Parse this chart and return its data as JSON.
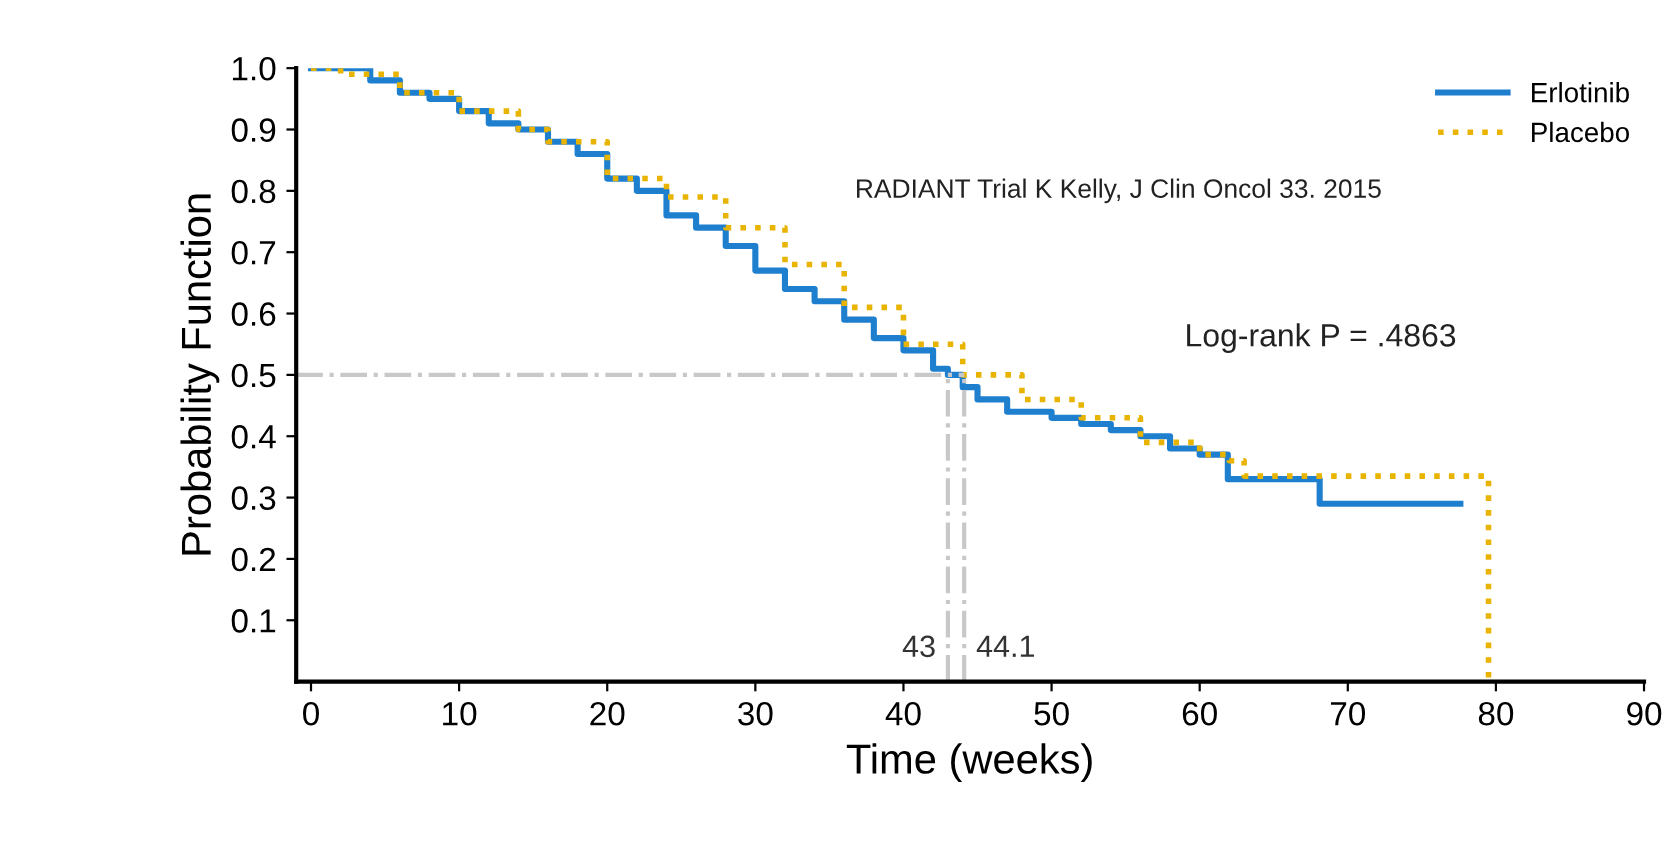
{
  "chart_data": {
    "type": "step",
    "xlabel": "Time (weeks)",
    "ylabel": "Probability Function",
    "xlim": [
      -1,
      90
    ],
    "ylim": [
      0,
      1.0
    ],
    "xticks": [
      0,
      10,
      20,
      30,
      40,
      50,
      60,
      70,
      80,
      90
    ],
    "yticks": [
      {
        "value": 0.1,
        "label": "0.1"
      },
      {
        "value": 0.2,
        "label": "0.2"
      },
      {
        "value": 0.3,
        "label": "0.3"
      },
      {
        "value": 0.4,
        "label": "0.4"
      },
      {
        "value": 0.5,
        "label": "0.5"
      },
      {
        "value": 0.6,
        "label": "0.6"
      },
      {
        "value": 0.7,
        "label": "0.7"
      },
      {
        "value": 0.8,
        "label": "0.8"
      },
      {
        "value": 0.9,
        "label": "0.9"
      },
      {
        "value": 1.0,
        "label": "1.0"
      }
    ],
    "grid": false,
    "legend": "top right",
    "series": [
      {
        "name": "Erlotinib",
        "color": "#1f7fcf",
        "line_style": "solid",
        "x": [
          0,
          2,
          4,
          6,
          8,
          10,
          12,
          14,
          16,
          18,
          20,
          22,
          24,
          26,
          28,
          30,
          32,
          34,
          36,
          38,
          40,
          42,
          43,
          44,
          45,
          47,
          50,
          52,
          54,
          56,
          58,
          60,
          61.9,
          68.1,
          77.6
        ],
        "values": [
          1.0,
          1.0,
          0.98,
          0.96,
          0.95,
          0.93,
          0.91,
          0.9,
          0.88,
          0.86,
          0.82,
          0.8,
          0.76,
          0.74,
          0.71,
          0.67,
          0.64,
          0.62,
          0.59,
          0.56,
          0.54,
          0.51,
          0.5,
          0.48,
          0.46,
          0.44,
          0.43,
          0.42,
          0.41,
          0.4,
          0.38,
          0.37,
          0.33,
          0.29,
          0.29
        ]
      },
      {
        "name": "Placebo",
        "color": "#e8b400",
        "line_style": "dotted",
        "x": [
          0,
          2,
          6,
          10,
          14,
          16,
          20,
          24,
          28,
          32,
          36,
          40,
          44,
          48,
          52,
          56,
          60,
          62,
          63,
          79.5
        ],
        "values": [
          1.0,
          0.99,
          0.96,
          0.93,
          0.9,
          0.88,
          0.82,
          0.79,
          0.74,
          0.68,
          0.61,
          0.55,
          0.5,
          0.46,
          0.43,
          0.39,
          0.37,
          0.36,
          0.335,
          0.0
        ]
      }
    ],
    "ref_lines": [
      {
        "axis": "y",
        "value": 0.5,
        "color": "#c8c8c8",
        "line_style": "dashdot"
      },
      {
        "axis": "x",
        "value": 43,
        "label": "43",
        "color": "#c8c8c8",
        "line_style": "dashdot"
      },
      {
        "axis": "x",
        "value": 44.1,
        "label": "44.1",
        "color": "#c8c8c8",
        "line_style": "dashdot"
      }
    ],
    "annotations": [
      "RADIANT Trial K Kelly, J Clin Oncol 33. 2015",
      "Log-rank P = .4863"
    ]
  }
}
